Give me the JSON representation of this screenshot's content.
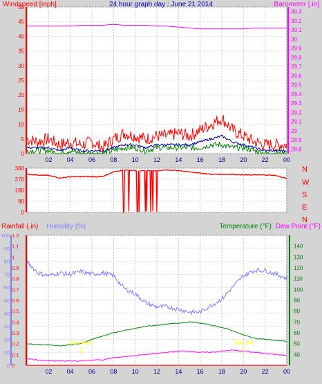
{
  "title": "24 hour graph day : June 21 2014",
  "hour_labels": [
    "02",
    "04",
    "06",
    "08",
    "10",
    "12",
    "14",
    "16",
    "18",
    "20",
    "22",
    "00"
  ],
  "colors": {
    "wind": "#ff0000",
    "wind_avg": "#0000a0",
    "wind_dir_gust": "#008000",
    "barometer": "#ff00ff",
    "winddir": "#ff0000",
    "rain": "#ff0000",
    "humidity": "#8080ff",
    "temperature": "#008000",
    "dewpoint": "#ff00ff",
    "sun": "#ffff00",
    "background": "#ffffff",
    "frame": "#d4d4d4"
  },
  "chart_data": [
    {
      "type": "line",
      "ylabel": "Windspeed [mph]",
      "y2label": "Barometer [.in]",
      "ylim": [
        0,
        50
      ],
      "yticks": [
        "0",
        "5",
        "10",
        "15",
        "20",
        "25",
        "30",
        "35",
        "40",
        "45",
        "50"
      ],
      "y2lim": [
        28.75,
        30.35
      ],
      "y2ticks": [
        "28.8",
        "28.9",
        "29",
        "29.1",
        "29.2",
        "29.3",
        "29.4",
        "29.5",
        "29.6",
        "29.7",
        "29.8",
        "29.9",
        "30",
        "30.1",
        "30.2",
        "30.3"
      ],
      "x": [
        0,
        1,
        2,
        3,
        4,
        5,
        6,
        7,
        8,
        9,
        10,
        11,
        12,
        13,
        14,
        15,
        16,
        17,
        18,
        19,
        20,
        21,
        22,
        23,
        24
      ],
      "series": [
        {
          "key": "wind_gust",
          "values": [
            5,
            4,
            5,
            3,
            4,
            3,
            4,
            2,
            5,
            7,
            6,
            5,
            6,
            6,
            7,
            6,
            8,
            10,
            12,
            8,
            6,
            4,
            3,
            3,
            3
          ]
        },
        {
          "key": "wind_avg",
          "values": [
            2,
            2,
            2,
            1,
            2,
            1,
            1,
            1,
            2,
            3,
            3,
            2,
            3,
            3,
            3,
            3,
            4,
            5,
            6,
            4,
            3,
            2,
            1,
            1,
            1
          ]
        },
        {
          "key": "wind_min",
          "values": [
            1,
            1,
            1,
            0,
            1,
            0,
            0,
            0,
            1,
            2,
            2,
            1,
            2,
            2,
            2,
            2,
            2,
            3,
            3,
            2,
            2,
            1,
            0,
            0,
            0
          ]
        },
        {
          "key": "barometer",
          "values": [
            30.14,
            30.14,
            30.14,
            30.14,
            30.14,
            30.15,
            30.15,
            30.15,
            30.16,
            30.15,
            30.15,
            30.15,
            30.14,
            30.14,
            30.13,
            30.12,
            30.11,
            30.11,
            30.11,
            30.11,
            30.11,
            30.12,
            30.12,
            30.12,
            30.12
          ]
        }
      ]
    },
    {
      "type": "line",
      "ylim": [
        0,
        360
      ],
      "yticks": [
        "0",
        "90",
        "180",
        "270",
        "360"
      ],
      "right_labels": [
        "N",
        "W",
        "S",
        "E",
        "N"
      ],
      "x": [
        0,
        1,
        2,
        3,
        4,
        5,
        6,
        7,
        8,
        9,
        10,
        11,
        12,
        13,
        14,
        15,
        16,
        17,
        18,
        19,
        20,
        21,
        22,
        23,
        24
      ],
      "series": [
        {
          "key": "winddir",
          "values": [
            310,
            305,
            300,
            280,
            290,
            290,
            290,
            290,
            330,
            345,
            340,
            340,
            340,
            345,
            340,
            330,
            320,
            310,
            310,
            310,
            305,
            305,
            305,
            300,
            275
          ]
        }
      ]
    },
    {
      "type": "line",
      "ylabel": "Rainfall (.in)",
      "ylabel2": "Humidity (%)",
      "y2label": "Temperature (°F)",
      "y2label2": "Dew Point (°F)",
      "ylim": [
        0,
        1.2
      ],
      "yticks": [
        "0",
        "0.1",
        "0.2",
        "0.3",
        "0.4",
        "0.5",
        "0.6",
        "0.7",
        "0.8",
        "0.9",
        "1",
        "1.1",
        "1.2"
      ],
      "humidity_lim": [
        0,
        100
      ],
      "humidity_ticks": [
        "0",
        "10",
        "20",
        "30",
        "40",
        "50",
        "60",
        "70",
        "80",
        "90",
        "100"
      ],
      "y2lim": [
        30,
        150
      ],
      "y2ticks": [
        "40",
        "50",
        "60",
        "70",
        "80",
        "90",
        "100",
        "110",
        "120",
        "130",
        "140"
      ],
      "sun_labels": [
        "Sun Rise",
        "Sun Set"
      ],
      "sun_x": [
        5,
        20
      ],
      "x": [
        0,
        1,
        2,
        3,
        4,
        5,
        6,
        7,
        8,
        9,
        10,
        11,
        12,
        13,
        14,
        15,
        16,
        17,
        18,
        19,
        20,
        21,
        22,
        23,
        24
      ],
      "series": [
        {
          "key": "humidity",
          "values": [
            80,
            71,
            69,
            71,
            70,
            72,
            70,
            71,
            69,
            59,
            55,
            48,
            45,
            45,
            43,
            41,
            41,
            46,
            51,
            60,
            69,
            73,
            73,
            70,
            67
          ]
        },
        {
          "key": "temperature",
          "values": [
            50,
            49,
            49,
            48,
            49,
            50,
            54,
            57,
            60,
            62,
            64,
            66,
            67,
            68,
            69,
            70,
            69,
            67,
            65,
            62,
            58,
            55,
            54,
            53,
            52
          ]
        },
        {
          "key": "dewpoint",
          "values": [
            36,
            35,
            34,
            34,
            34,
            34,
            35,
            35,
            37,
            38,
            39,
            40,
            41,
            42,
            43,
            43,
            42,
            42,
            43,
            44,
            43,
            42,
            41,
            40,
            39
          ]
        },
        {
          "key": "rain",
          "values": [
            0,
            0,
            0,
            0,
            0,
            0,
            0,
            0,
            0,
            0,
            0,
            0,
            0,
            0,
            0,
            0,
            0,
            0,
            0,
            0,
            0,
            0,
            0,
            0,
            0
          ]
        }
      ]
    }
  ]
}
